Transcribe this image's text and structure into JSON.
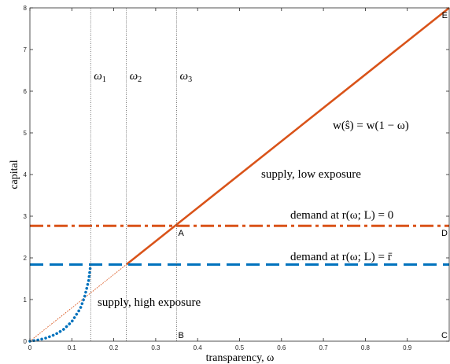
{
  "chart_data": {
    "type": "line",
    "xlabel": "transparency, ω",
    "ylabel": "capital",
    "xlim": [
      0,
      1
    ],
    "ylim": [
      0,
      8
    ],
    "xticks": [
      0,
      0.1,
      0.2,
      0.3,
      0.4,
      0.5,
      0.6,
      0.7,
      0.8,
      0.9
    ],
    "xtick_labels": [
      "0",
      "0.1",
      "0.2",
      "0.3",
      "0.4",
      "0.5",
      "0.6",
      "0.7",
      "0.8",
      "0.9"
    ],
    "yticks": [
      0,
      1,
      2,
      3,
      4,
      5,
      6,
      7,
      8
    ],
    "ytick_labels": [
      "0",
      "1",
      "2",
      "3",
      "4",
      "5",
      "6",
      "7",
      "8"
    ],
    "grid": false,
    "colors": {
      "orange": "#d95319",
      "blue": "#0072bd",
      "gray": "#555555"
    },
    "series": [
      {
        "style": "solid",
        "color": "#d95319",
        "x": [
          0.23,
          1.0
        ],
        "y": [
          1.84,
          8.0
        ]
      },
      {
        "style": "dotted-thin",
        "color": "#d95319",
        "x": [
          0.0,
          0.23
        ],
        "y": [
          0.0,
          1.84
        ]
      },
      {
        "style": "dashdot",
        "color": "#d95319",
        "x": [
          0.0,
          1.0
        ],
        "y": [
          2.77,
          2.77
        ]
      },
      {
        "style": "dashed",
        "color": "#0072bd",
        "x": [
          0.0,
          1.0
        ],
        "y": [
          1.84,
          1.84
        ]
      },
      {
        "style": "dotted-thick",
        "color": "#0072bd",
        "x": [
          0.0,
          0.02,
          0.04,
          0.06,
          0.08,
          0.1,
          0.12,
          0.13,
          0.14,
          0.145
        ],
        "y": [
          0.0,
          0.03,
          0.08,
          0.16,
          0.28,
          0.47,
          0.78,
          1.05,
          1.45,
          1.84
        ]
      }
    ],
    "vlines": [
      {
        "x": 0.145,
        "label": "ω",
        "sub": "1"
      },
      {
        "x": 0.23,
        "label": "ω",
        "sub": "2"
      },
      {
        "x": 0.35,
        "label": "ω",
        "sub": "3"
      }
    ],
    "points": [
      {
        "label": "A",
        "x": 0.35,
        "y": 2.77
      },
      {
        "label": "B",
        "x": 0.35,
        "y": 0.0
      },
      {
        "label": "C",
        "x": 1.0,
        "y": 0.0
      },
      {
        "label": "D",
        "x": 1.0,
        "y": 2.77
      },
      {
        "label": "E",
        "x": 1.0,
        "y": 8.0
      }
    ],
    "annotations": {
      "supply_line": "w(ŝ) = w(1 − ω)",
      "supply_low": "supply, low exposure",
      "demand_zero": "demand at r(ω; L) = 0",
      "demand_rbar": "demand at r(ω; L) = r̄",
      "supply_high": "supply, high exposure"
    }
  }
}
